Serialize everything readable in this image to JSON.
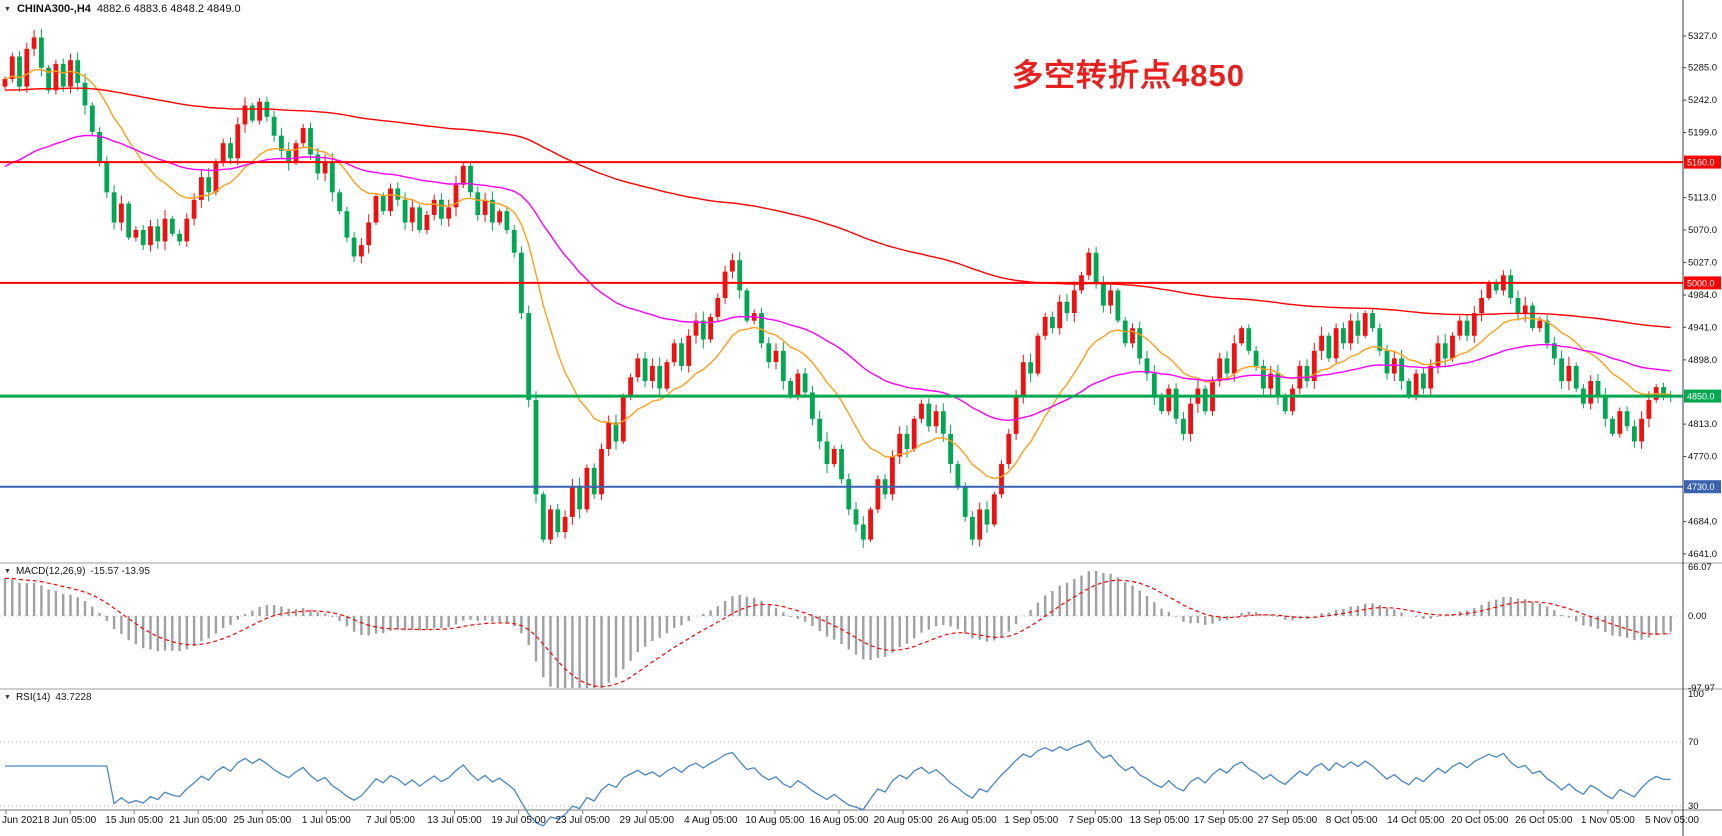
{
  "header": {
    "marker": "▼",
    "symbol": "CHINA300-,H4",
    "ohlc": "4882.6 4883.6 4848.2 4849.0"
  },
  "annotation": {
    "text": "多空转折点4850",
    "color": "#e8211f"
  },
  "chart_data": {
    "type": "candlestick",
    "symbol": "CHINA300-",
    "timeframe": "H4",
    "ylim": [
      4632,
      5375
    ],
    "up_color": "#ee1111",
    "down_color": "#00a651",
    "price_axis_ticks": [
      5327.0,
      5285.0,
      5242.0,
      5199.0,
      5113.0,
      5070.0,
      5027.0,
      4984.0,
      4941.0,
      4898.0,
      4813.0,
      4770.0,
      4684.0,
      4641.0
    ],
    "hlines": [
      {
        "price": 5160.0,
        "label": "5160.0",
        "color": "#ff0000",
        "width": 2
      },
      {
        "price": 5000.0,
        "label": "5000.0",
        "color": "#ff0000",
        "width": 2
      },
      {
        "price": 4850.0,
        "label": "4850.0",
        "color": "#00a94f",
        "width": 3
      },
      {
        "price": 4730.0,
        "label": "4730.0",
        "color": "#3a62b0",
        "width": 2
      }
    ],
    "moving_averages": [
      {
        "name": "ma-fast-orange",
        "color": "#ff9f1a",
        "period": 16,
        "seed": 5270
      },
      {
        "name": "ma-medium-magenta",
        "color": "#ff00ff",
        "period": 55,
        "seed": 5150
      },
      {
        "name": "ma-slow-red",
        "color": "#ff0000",
        "period": 200,
        "seed": 5255
      }
    ],
    "candles": {
      "first_open": 5260,
      "closes": [
        5270,
        5300,
        5260,
        5310,
        5325,
        5285,
        5255,
        5290,
        5260,
        5295,
        5265,
        5235,
        5200,
        5160,
        5120,
        5080,
        5105,
        5060,
        5070,
        5050,
        5075,
        5055,
        5085,
        5065,
        5055,
        5085,
        5110,
        5140,
        5120,
        5160,
        5185,
        5165,
        5210,
        5235,
        5215,
        5240,
        5220,
        5195,
        5175,
        5160,
        5185,
        5205,
        5170,
        5145,
        5160,
        5120,
        5095,
        5060,
        5035,
        5050,
        5080,
        5115,
        5095,
        5125,
        5110,
        5080,
        5100,
        5070,
        5090,
        5110,
        5085,
        5100,
        5130,
        5155,
        5120,
        5090,
        5110,
        5080,
        5095,
        5070,
        5040,
        4960,
        4845,
        4720,
        4660,
        4700,
        4670,
        4690,
        4730,
        4700,
        4755,
        4720,
        4780,
        4815,
        4790,
        4850,
        4875,
        4900,
        4870,
        4890,
        4860,
        4895,
        4920,
        4890,
        4930,
        4950,
        4925,
        4955,
        4980,
        5015,
        5030,
        4990,
        4950,
        4960,
        4920,
        4895,
        4910,
        4870,
        4850,
        4880,
        4855,
        4820,
        4790,
        4760,
        4780,
        4740,
        4700,
        4680,
        4660,
        4700,
        4740,
        4720,
        4770,
        4800,
        4780,
        4820,
        4840,
        4810,
        4830,
        4800,
        4760,
        4730,
        4690,
        4660,
        4700,
        4680,
        4720,
        4760,
        4800,
        4850,
        4895,
        4880,
        4930,
        4955,
        4940,
        4975,
        4960,
        4990,
        5010,
        5040,
        5000,
        4970,
        4990,
        4950,
        4920,
        4940,
        4900,
        4880,
        4850,
        4830,
        4860,
        4820,
        4800,
        4840,
        4860,
        4830,
        4870,
        4900,
        4880,
        4920,
        4940,
        4910,
        4890,
        4860,
        4880,
        4850,
        4830,
        4860,
        4890,
        4870,
        4910,
        4930,
        4900,
        4940,
        4920,
        4950,
        4930,
        4960,
        4940,
        4910,
        4880,
        4900,
        4870,
        4850,
        4880,
        4860,
        4890,
        4920,
        4900,
        4930,
        4950,
        4930,
        4960,
        4980,
        5000,
        4990,
        5010,
        4980,
        4960,
        4970,
        4940,
        4950,
        4920,
        4900,
        4870,
        4890,
        4860,
        4840,
        4870,
        4850,
        4820,
        4800,
        4830,
        4810,
        4790,
        4820,
        4845,
        4862,
        4850,
        4849
      ]
    },
    "time_labels": [
      "Jun 2021",
      "8 Jun 05:00",
      "15 Jun 05:00",
      "21 Jun 05:00",
      "25 Jun 05:00",
      "1 Jul 05:00",
      "7 Jul 05:00",
      "13 Jul 05:00",
      "19 Jul 05:00",
      "23 Jul 05:00",
      "29 Jul 05:00",
      "4 Aug 05:00",
      "10 Aug 05:00",
      "16 Aug 05:00",
      "20 Aug 05:00",
      "26 Aug 05:00",
      "1 Sep 05:00",
      "7 Sep 05:00",
      "13 Sep 05:00",
      "17 Sep 05:00",
      "27 Sep 05:00",
      "8 Oct 05:00",
      "14 Oct 05:00",
      "20 Oct 05:00",
      "26 Oct 05:00",
      "1 Nov 05:00",
      "5 Nov 05:00"
    ],
    "indicators": {
      "macd": {
        "label": "MACD(12,26,9)",
        "values_text": "-15.57 -13.95",
        "axis_labels": [
          "66.07",
          "0.00",
          "-97.97"
        ],
        "axis_values": [
          66.07,
          0,
          -97.97
        ],
        "histogram_color": "#a0a0a0",
        "signal_color": "#ff0000"
      },
      "rsi": {
        "label": "RSI(14)",
        "value_text": "43.7228",
        "axis_labels": [
          "100",
          "70",
          "30"
        ],
        "axis_values": [
          100,
          70,
          30
        ],
        "levels": [
          70,
          30
        ],
        "line_color": "#4a86c8"
      }
    }
  }
}
